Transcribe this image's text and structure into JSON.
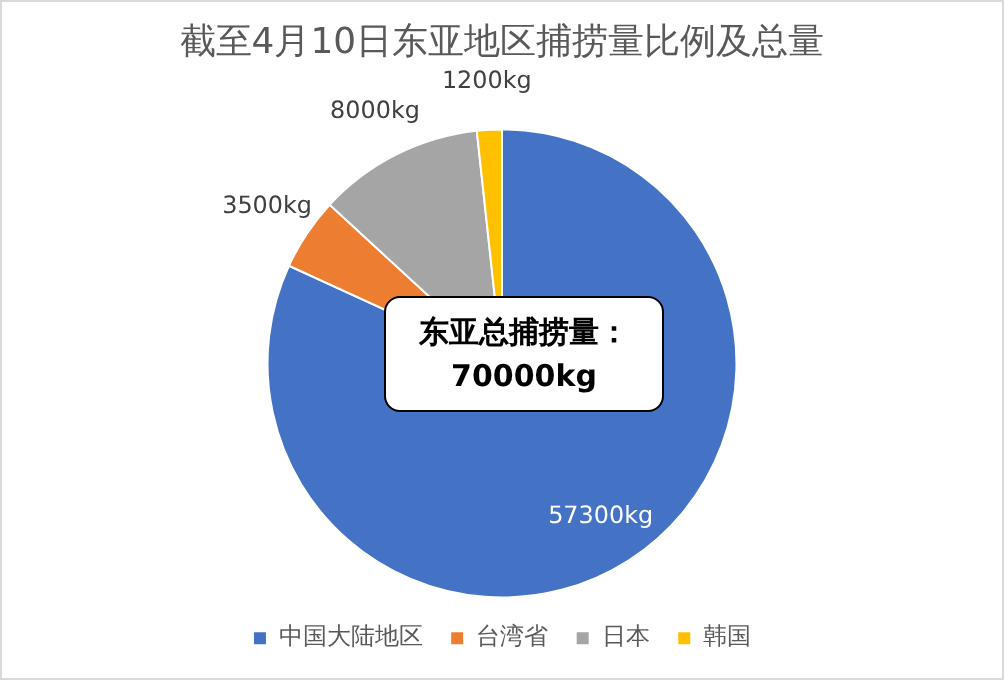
{
  "chart_data": {
    "type": "pie",
    "title": "截至4月10日东亚地区捕捞量比例及总量",
    "categories": [
      "中国大陆地区",
      "台湾省",
      "日本",
      "韩国"
    ],
    "values": [
      57300,
      3500,
      8000,
      1200
    ],
    "value_labels": [
      "57300kg",
      "3500kg",
      "8000kg",
      "1200kg"
    ],
    "colors": [
      "#4472c4",
      "#ed7d31",
      "#a5a5a5",
      "#ffc000"
    ],
    "legend": "bottom",
    "annotations": [
      "东亚总捕捞量：\n70000kg"
    ]
  }
}
